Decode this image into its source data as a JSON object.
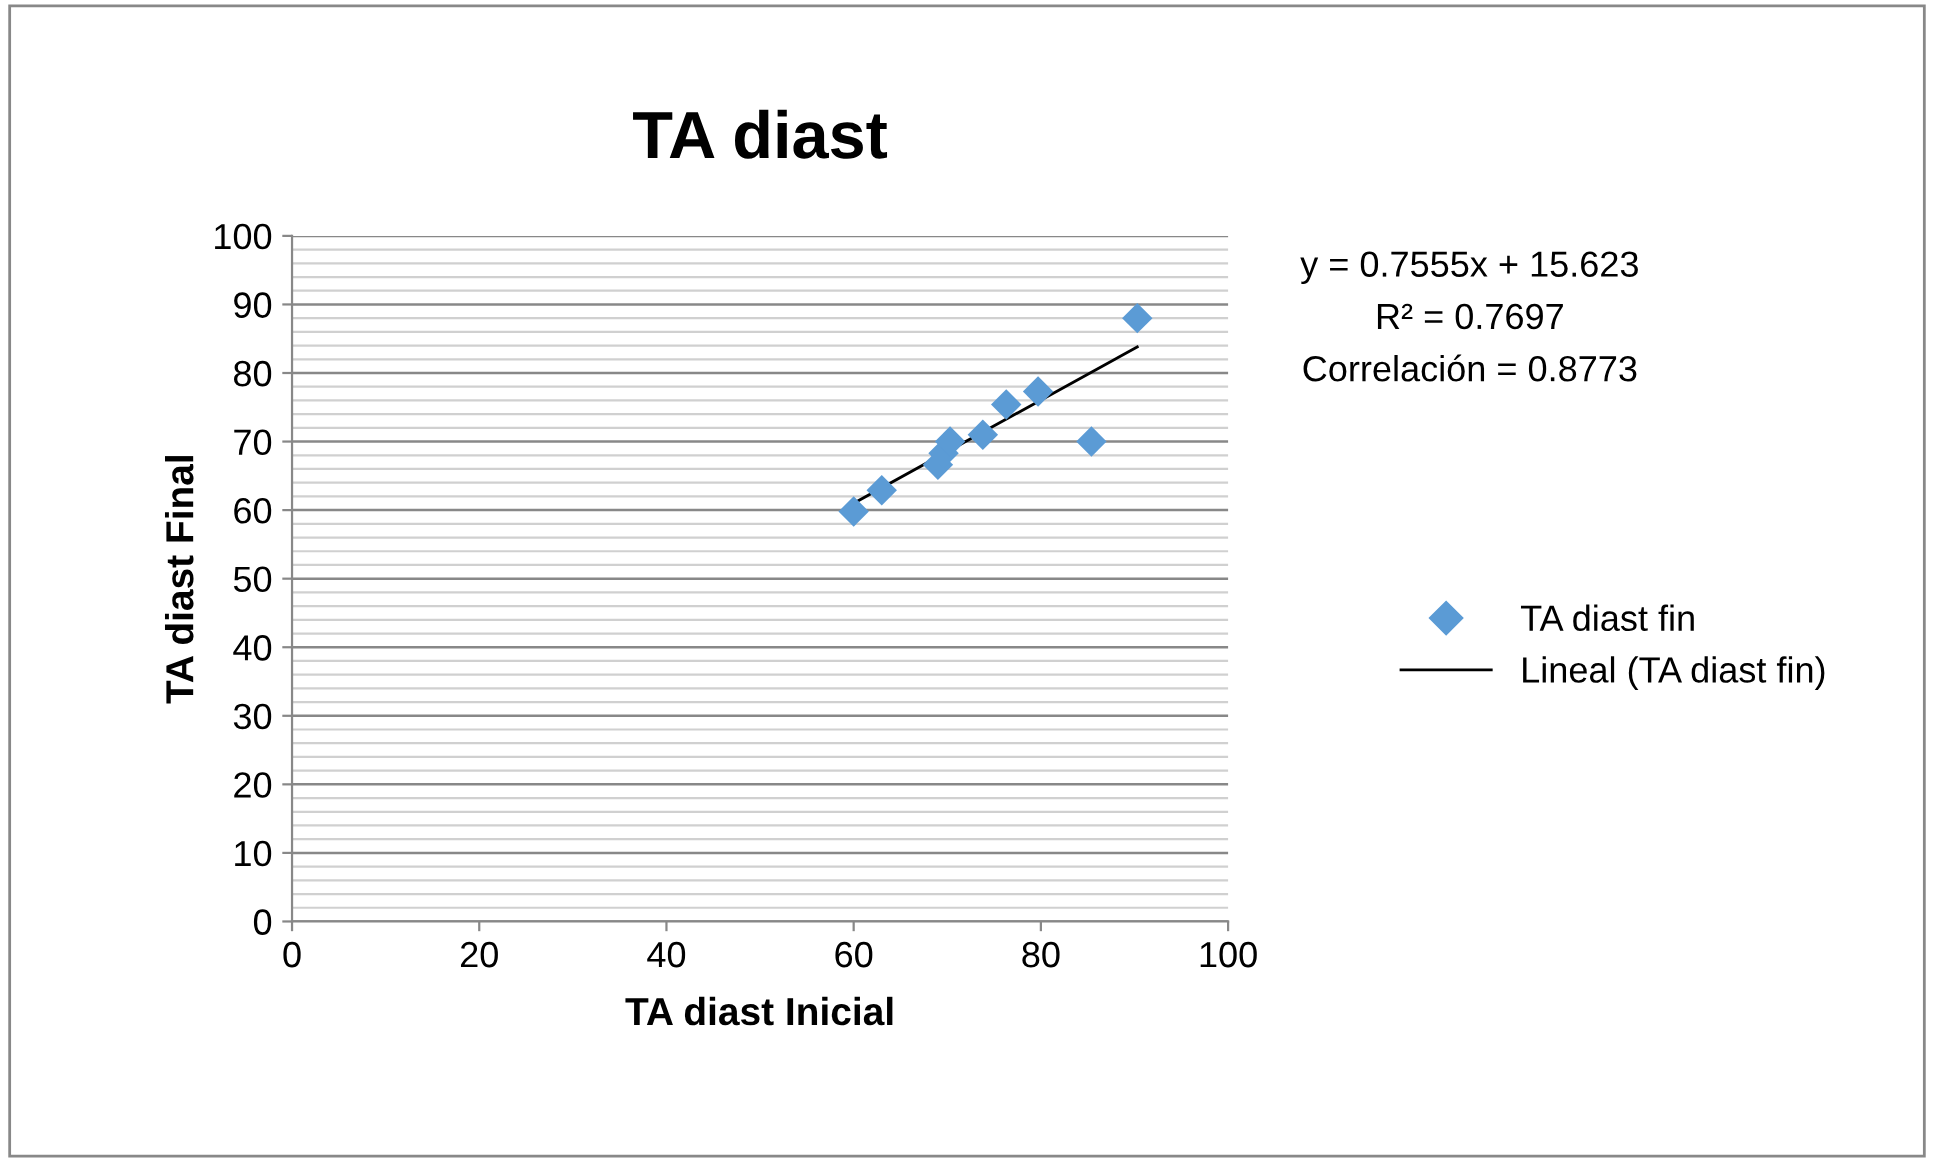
{
  "chart_data": {
    "type": "scatter",
    "title": "TA diast",
    "xlabel": "TA diast Inicial",
    "ylabel": "TA diast Final",
    "xlim": [
      0,
      100
    ],
    "xticks": [
      0,
      20,
      40,
      60,
      80,
      100
    ],
    "ylim": [
      0,
      100
    ],
    "yticks": [
      0,
      10,
      20,
      30,
      40,
      50,
      60,
      70,
      80,
      90,
      100
    ],
    "grid": "y",
    "legend": "right",
    "annotations": [
      "y = 0.7555x + 15.623",
      "R² = 0.7697",
      "Correlación = 0.8773"
    ],
    "series": [
      {
        "name": "TA diast fin",
        "marker": "diamond",
        "color": "#5b9bd5",
        "x": [
          60,
          63,
          69,
          69.6,
          70.3,
          73.8,
          76.3,
          79.7,
          85.4,
          90.3
        ],
        "values": [
          59.8,
          62.9,
          66.6,
          68.3,
          70,
          71,
          75.4,
          77.3,
          70,
          88
        ]
      },
      {
        "name": "Lineal (TA diast fin)",
        "type": "line",
        "color": "#000000",
        "x": [
          60,
          90.3
        ],
        "values": [
          61,
          83.8
        ]
      }
    ]
  }
}
